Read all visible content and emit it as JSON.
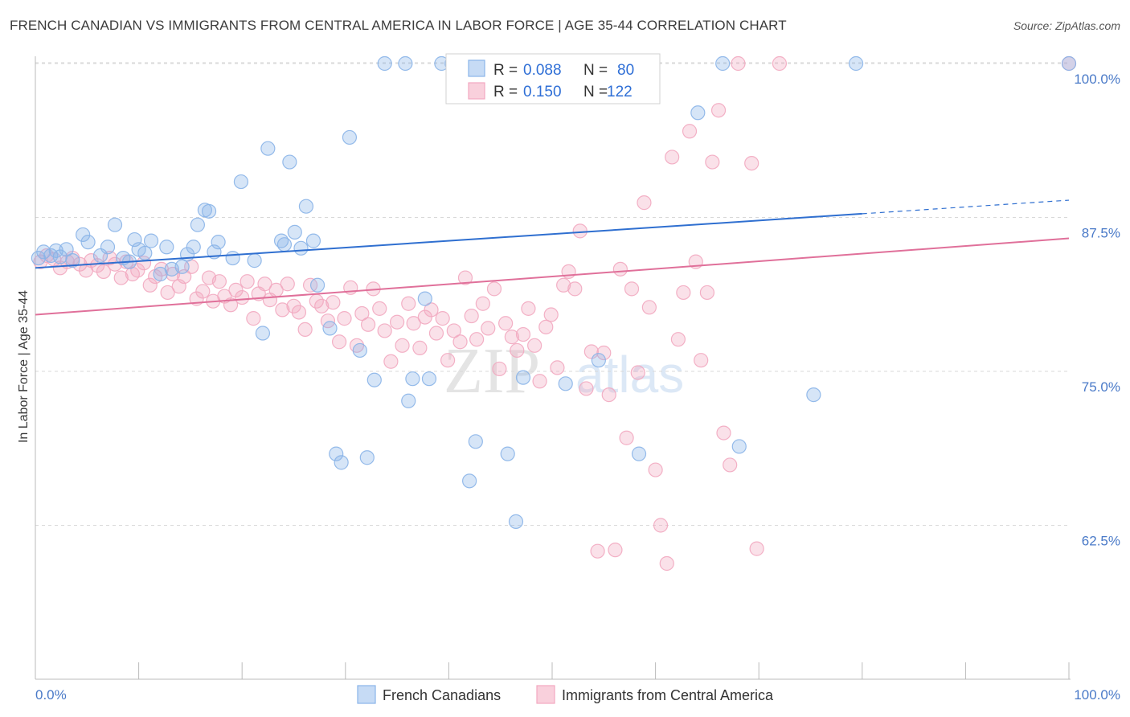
{
  "title": "FRENCH CANADIAN VS IMMIGRANTS FROM CENTRAL AMERICA IN LABOR FORCE | AGE 35-44 CORRELATION CHART",
  "source": "Source: ZipAtlas.com",
  "watermark": {
    "zip": "ZIP",
    "atlas": "atlas"
  },
  "colors": {
    "blue": "#8ab4e8",
    "blue_line": "#2f6fd0",
    "pink": "#f2a8c0",
    "pink_line": "#e0709a",
    "grid": "#d8d8d8",
    "tick_label": "#4a7ac8"
  },
  "legend": {
    "r_label": "R = ",
    "n_label": "N = ",
    "blue_r": "0.088",
    "blue_n": "80",
    "pink_r": "0.150",
    "pink_n": "122"
  },
  "chart_data": {
    "type": "scatter",
    "xlabel": "",
    "ylabel": "In Labor Force | Age 35-44",
    "x_tick_labels": [
      "0.0%",
      "100.0%"
    ],
    "y_tick_labels": [
      "62.5%",
      "75.0%",
      "87.5%",
      "100.0%"
    ],
    "xlim": [
      0,
      100
    ],
    "ylim": [
      50,
      100
    ],
    "grid": true,
    "legend_position": "bottom",
    "series": [
      {
        "name": "French Canadians",
        "color": "#8ab4e8",
        "trend": {
          "x": [
            0,
            80
          ],
          "y": [
            83.4,
            87.8
          ],
          "extend_to": [
            100,
            88.9
          ]
        },
        "points": [
          [
            0.3,
            84.2
          ],
          [
            0.8,
            84.7
          ],
          [
            1.5,
            84.4
          ],
          [
            2,
            84.8
          ],
          [
            2.4,
            84.3
          ],
          [
            3,
            84.9
          ],
          [
            3.6,
            84.0
          ],
          [
            4.6,
            86.1
          ],
          [
            5.1,
            85.5
          ],
          [
            6.3,
            84.4
          ],
          [
            7,
            85.1
          ],
          [
            7.7,
            86.9
          ],
          [
            8.5,
            84.2
          ],
          [
            9.1,
            83.9
          ],
          [
            9.6,
            85.7
          ],
          [
            10,
            84.9
          ],
          [
            10.6,
            84.6
          ],
          [
            11.2,
            85.6
          ],
          [
            12.1,
            82.9
          ],
          [
            12.7,
            85.1
          ],
          [
            13.2,
            83.3
          ],
          [
            14.2,
            83.5
          ],
          [
            14.7,
            84.5
          ],
          [
            15.3,
            85.1
          ],
          [
            15.7,
            86.9
          ],
          [
            16.4,
            88.1
          ],
          [
            16.8,
            88.0
          ],
          [
            17.3,
            84.7
          ],
          [
            17.7,
            85.5
          ],
          [
            19.1,
            84.2
          ],
          [
            19.9,
            90.4
          ],
          [
            21.2,
            84.0
          ],
          [
            22,
            78.1
          ],
          [
            22.5,
            93.1
          ],
          [
            23.8,
            85.6
          ],
          [
            24.1,
            85.3
          ],
          [
            24.6,
            92.0
          ],
          [
            25.1,
            86.3
          ],
          [
            25.7,
            85.0
          ],
          [
            26.2,
            88.4
          ],
          [
            26.9,
            85.6
          ],
          [
            27.3,
            82.0
          ],
          [
            28.5,
            78.5
          ],
          [
            29.1,
            68.3
          ],
          [
            29.6,
            67.6
          ],
          [
            30.4,
            94.0
          ],
          [
            31.4,
            76.7
          ],
          [
            32.1,
            68.0
          ],
          [
            32.8,
            74.3
          ],
          [
            33.8,
            100
          ],
          [
            35.8,
            100
          ],
          [
            36.1,
            72.6
          ],
          [
            36.5,
            74.4
          ],
          [
            37.7,
            80.9
          ],
          [
            38.1,
            74.4
          ],
          [
            39.3,
            100
          ],
          [
            40.3,
            100
          ],
          [
            40.8,
            100
          ],
          [
            41.2,
            100
          ],
          [
            42,
            66.1
          ],
          [
            42.6,
            69.3
          ],
          [
            43.5,
            100
          ],
          [
            44.3,
            100
          ],
          [
            45.2,
            100
          ],
          [
            45.7,
            68.3
          ],
          [
            46.5,
            62.8
          ],
          [
            47.2,
            74.5
          ],
          [
            48.4,
            100
          ],
          [
            49.1,
            100
          ],
          [
            51.3,
            74.0
          ],
          [
            51.9,
            100
          ],
          [
            54.5,
            75.9
          ],
          [
            57.2,
            100
          ],
          [
            58.4,
            68.3
          ],
          [
            64.1,
            96.0
          ],
          [
            66.5,
            100
          ],
          [
            68.1,
            68.9
          ],
          [
            75.3,
            73.1
          ],
          [
            79.4,
            100
          ],
          [
            100,
            100
          ]
        ]
      },
      {
        "name": "Immigrants from Central America",
        "color": "#f2a8c0",
        "trend": {
          "x": [
            0,
            100
          ],
          "y": [
            79.6,
            85.8
          ]
        },
        "points": [
          [
            0.5,
            83.9
          ],
          [
            1.1,
            84.4
          ],
          [
            1.8,
            84.1
          ],
          [
            2.4,
            83.4
          ],
          [
            3.1,
            83.9
          ],
          [
            3.6,
            84.2
          ],
          [
            4.3,
            83.7
          ],
          [
            4.9,
            83.2
          ],
          [
            5.4,
            84.0
          ],
          [
            6,
            83.6
          ],
          [
            6.6,
            83.1
          ],
          [
            7.2,
            84.2
          ],
          [
            7.7,
            83.7
          ],
          [
            8.3,
            82.6
          ],
          [
            8.8,
            83.9
          ],
          [
            9.4,
            82.9
          ],
          [
            9.9,
            83.2
          ],
          [
            10.5,
            83.8
          ],
          [
            11.1,
            82.0
          ],
          [
            11.6,
            82.7
          ],
          [
            12.2,
            83.3
          ],
          [
            12.8,
            81.4
          ],
          [
            13.3,
            82.9
          ],
          [
            13.9,
            81.9
          ],
          [
            14.4,
            82.7
          ],
          [
            15.1,
            83.5
          ],
          [
            15.6,
            80.9
          ],
          [
            16.2,
            81.5
          ],
          [
            16.8,
            82.6
          ],
          [
            17.2,
            80.7
          ],
          [
            17.8,
            82.3
          ],
          [
            18.3,
            81.1
          ],
          [
            18.9,
            80.4
          ],
          [
            19.4,
            81.6
          ],
          [
            20,
            81.0
          ],
          [
            20.5,
            82.3
          ],
          [
            21.1,
            79.3
          ],
          [
            21.6,
            81.3
          ],
          [
            22.2,
            82.1
          ],
          [
            22.7,
            80.8
          ],
          [
            23.3,
            81.6
          ],
          [
            23.9,
            80.0
          ],
          [
            24.4,
            82.1
          ],
          [
            25,
            80.3
          ],
          [
            25.5,
            79.8
          ],
          [
            26.1,
            78.4
          ],
          [
            26.6,
            82.0
          ],
          [
            27.2,
            80.7
          ],
          [
            27.7,
            80.3
          ],
          [
            28.3,
            79.1
          ],
          [
            28.8,
            80.6
          ],
          [
            29.4,
            77.4
          ],
          [
            29.9,
            79.3
          ],
          [
            30.5,
            81.8
          ],
          [
            31.1,
            77.1
          ],
          [
            31.6,
            79.7
          ],
          [
            32.2,
            78.8
          ],
          [
            32.7,
            81.7
          ],
          [
            33.3,
            80.1
          ],
          [
            33.8,
            78.3
          ],
          [
            34.4,
            75.8
          ],
          [
            35,
            79.0
          ],
          [
            35.5,
            77.1
          ],
          [
            36.1,
            80.5
          ],
          [
            36.6,
            78.9
          ],
          [
            37.2,
            76.9
          ],
          [
            37.7,
            79.4
          ],
          [
            38.3,
            80.0
          ],
          [
            38.8,
            78.1
          ],
          [
            39.4,
            79.3
          ],
          [
            39.9,
            75.9
          ],
          [
            40.5,
            78.3
          ],
          [
            41.1,
            77.4
          ],
          [
            41.6,
            82.6
          ],
          [
            42.2,
            79.5
          ],
          [
            42.7,
            77.6
          ],
          [
            43.3,
            80.5
          ],
          [
            43.8,
            78.5
          ],
          [
            44.4,
            81.7
          ],
          [
            44.9,
            75.2
          ],
          [
            45.5,
            78.9
          ],
          [
            46.1,
            77.8
          ],
          [
            46.6,
            76.7
          ],
          [
            47.2,
            78.0
          ],
          [
            47.7,
            80.1
          ],
          [
            48.3,
            77.1
          ],
          [
            48.8,
            74.2
          ],
          [
            49.4,
            78.6
          ],
          [
            49.9,
            79.6
          ],
          [
            50.5,
            75.3
          ],
          [
            51.1,
            82.0
          ],
          [
            51.6,
            83.1
          ],
          [
            52.2,
            81.7
          ],
          [
            52.7,
            86.4
          ],
          [
            53.3,
            73.6
          ],
          [
            53.8,
            76.6
          ],
          [
            54.4,
            60.4
          ],
          [
            55,
            76.5
          ],
          [
            55.5,
            73.1
          ],
          [
            56.1,
            60.5
          ],
          [
            56.6,
            83.3
          ],
          [
            57.2,
            69.6
          ],
          [
            57.7,
            81.7
          ],
          [
            58.3,
            74.9
          ],
          [
            58.9,
            88.7
          ],
          [
            59.4,
            80.2
          ],
          [
            60,
            67.0
          ],
          [
            60.5,
            62.5
          ],
          [
            61.1,
            59.4
          ],
          [
            61.6,
            92.4
          ],
          [
            62.2,
            77.6
          ],
          [
            62.7,
            81.4
          ],
          [
            63.3,
            94.5
          ],
          [
            63.9,
            83.9
          ],
          [
            64.4,
            75.9
          ],
          [
            65,
            81.4
          ],
          [
            65.5,
            92.0
          ],
          [
            66.1,
            96.2
          ],
          [
            66.6,
            70.0
          ],
          [
            67.2,
            67.4
          ],
          [
            68,
            100
          ],
          [
            69.3,
            91.9
          ],
          [
            69.8,
            60.6
          ],
          [
            72,
            100
          ],
          [
            100,
            100
          ]
        ]
      }
    ]
  },
  "bottom_legend": {
    "blue_label": "French Canadians",
    "pink_label": "Immigrants from Central America"
  }
}
